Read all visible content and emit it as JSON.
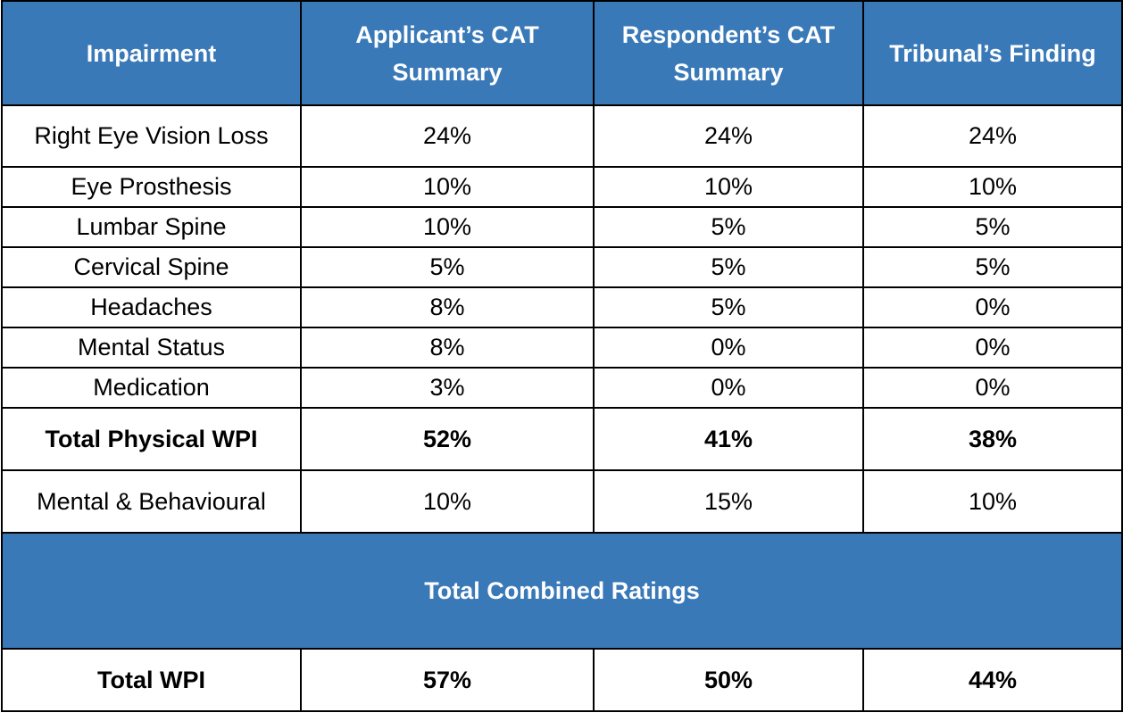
{
  "headers": [
    "Impairment",
    "Applicant’s CAT Summary",
    "Respondent’s CAT Summary",
    "Tribunal’s Finding"
  ],
  "rows": [
    [
      "Right Eye Vision Loss",
      "24%",
      "24%",
      "24%"
    ],
    [
      "Eye Prosthesis",
      "10%",
      "10%",
      "10%"
    ],
    [
      "Lumbar Spine",
      "10%",
      "5%",
      "5%"
    ],
    [
      "Cervical Spine",
      "5%",
      "5%",
      "5%"
    ],
    [
      "Headaches",
      "8%",
      "5%",
      "0%"
    ],
    [
      "Mental Status",
      "8%",
      "0%",
      "0%"
    ],
    [
      "Medication",
      "3%",
      "0%",
      "0%"
    ]
  ],
  "total_physical": [
    "Total Physical WPI",
    "52%",
    "41%",
    "38%"
  ],
  "mental_behavioural": [
    "Mental & Behavioural",
    "10%",
    "15%",
    "10%"
  ],
  "combined_banner": "Total Combined Ratings",
  "total_wpi": [
    "Total WPI",
    "57%",
    "50%",
    "44%"
  ],
  "colors": {
    "header_bg": "#3a79b8",
    "header_text": "#ffffff",
    "border": "#000000"
  }
}
